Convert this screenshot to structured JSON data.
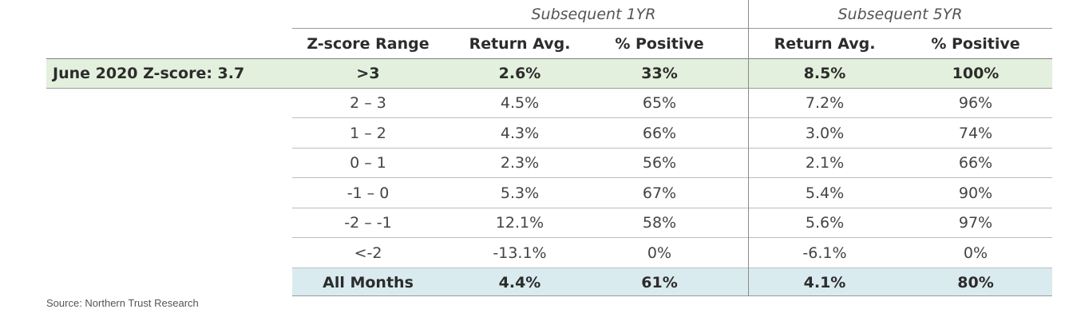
{
  "table": {
    "group_headers": [
      "Subsequent 1YR",
      "Subsequent 5YR"
    ],
    "columns": [
      "Z-score Range",
      "Return Avg.",
      "% Positive",
      "Return Avg.",
      "% Positive"
    ],
    "highlight_row": {
      "label": "June 2020 Z-score: 3.7",
      "cells": [
        ">3",
        "2.6%",
        "33%",
        "8.5%",
        "100%"
      ],
      "color": "#e3f0dd"
    },
    "rows": [
      [
        "2 – 3",
        "4.5%",
        "65%",
        "7.2%",
        "96%"
      ],
      [
        "1 – 2",
        "4.3%",
        "66%",
        "3.0%",
        "74%"
      ],
      [
        "0 – 1",
        "2.3%",
        "56%",
        "2.1%",
        "66%"
      ],
      [
        "-1 – 0",
        "5.3%",
        "67%",
        "5.4%",
        "90%"
      ],
      [
        "-2 – -1",
        "12.1%",
        "58%",
        "5.6%",
        "97%"
      ],
      [
        "<-2",
        "-13.1%",
        "0%",
        "-6.1%",
        "0%"
      ]
    ],
    "summary_row": {
      "cells": [
        "All Months",
        "4.4%",
        "61%",
        "4.1%",
        "80%"
      ],
      "color": "#daebf0"
    }
  },
  "source": "Source: Northern Trust Research"
}
